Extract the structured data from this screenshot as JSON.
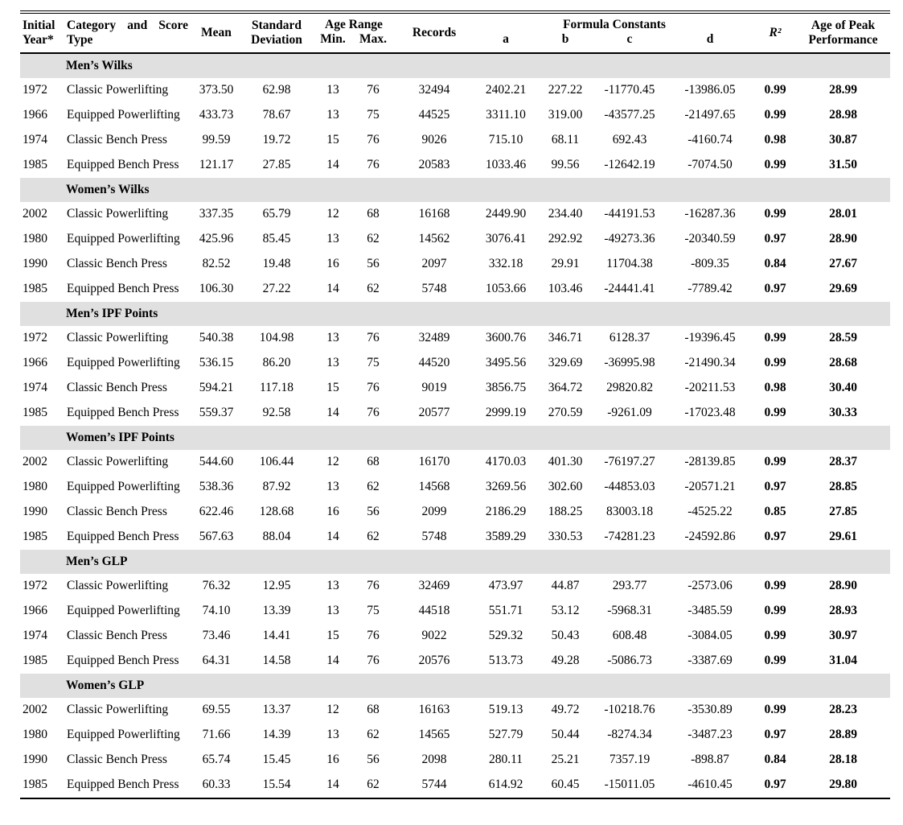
{
  "colors": {
    "section_band": "#e0e0e0",
    "text": "#000000"
  },
  "table": {
    "header": {
      "initial_year": "Initial Year*",
      "category": "Category and Score Type",
      "mean": "Mean",
      "std_dev": "Standard Deviation",
      "age_range": "Age Range",
      "min": "Min.",
      "max": "Max.",
      "records": "Records",
      "formula_constants": "Formula Constants",
      "a": "a",
      "b": "b",
      "c": "c",
      "d": "d",
      "r2": "R²",
      "peak": "Age of Peak Performance"
    },
    "sections": [
      {
        "title": "Men’s Wilks",
        "rows": [
          {
            "year": "1972",
            "category": "Classic Powerlifting",
            "mean": "373.50",
            "sd": "62.98",
            "min": "13",
            "max": "76",
            "records": "32494",
            "a": "2402.21",
            "b": "227.22",
            "c": "-11770.45",
            "d": "-13986.05",
            "r2": "0.99",
            "peak": "28.99"
          },
          {
            "year": "1966",
            "category": "Equipped Powerlifting",
            "mean": "433.73",
            "sd": "78.67",
            "min": "13",
            "max": "75",
            "records": "44525",
            "a": "3311.10",
            "b": "319.00",
            "c": "-43577.25",
            "d": "-21497.65",
            "r2": "0.99",
            "peak": "28.98"
          },
          {
            "year": "1974",
            "category": "Classic Bench Press",
            "mean": "99.59",
            "sd": "19.72",
            "min": "15",
            "max": "76",
            "records": "9026",
            "a": "715.10",
            "b": "68.11",
            "c": "692.43",
            "d": "-4160.74",
            "r2": "0.98",
            "peak": "30.87"
          },
          {
            "year": "1985",
            "category": "Equipped Bench Press",
            "mean": "121.17",
            "sd": "27.85",
            "min": "14",
            "max": "76",
            "records": "20583",
            "a": "1033.46",
            "b": "99.56",
            "c": "-12642.19",
            "d": "-7074.50",
            "r2": "0.99",
            "peak": "31.50"
          }
        ]
      },
      {
        "title": "Women’s Wilks",
        "rows": [
          {
            "year": "2002",
            "category": "Classic Powerlifting",
            "mean": "337.35",
            "sd": "65.79",
            "min": "12",
            "max": "68",
            "records": "16168",
            "a": "2449.90",
            "b": "234.40",
            "c": "-44191.53",
            "d": "-16287.36",
            "r2": "0.99",
            "peak": "28.01"
          },
          {
            "year": "1980",
            "category": "Equipped Powerlifting",
            "mean": "425.96",
            "sd": "85.45",
            "min": "13",
            "max": "62",
            "records": "14562",
            "a": "3076.41",
            "b": "292.92",
            "c": "-49273.36",
            "d": "-20340.59",
            "r2": "0.97",
            "peak": "28.90"
          },
          {
            "year": "1990",
            "category": "Classic Bench Press",
            "mean": "82.52",
            "sd": "19.48",
            "min": "16",
            "max": "56",
            "records": "2097",
            "a": "332.18",
            "b": "29.91",
            "c": "11704.38",
            "d": "-809.35",
            "r2": "0.84",
            "peak": "27.67"
          },
          {
            "year": "1985",
            "category": "Equipped Bench Press",
            "mean": "106.30",
            "sd": "27.22",
            "min": "14",
            "max": "62",
            "records": "5748",
            "a": "1053.66",
            "b": "103.46",
            "c": "-24441.41",
            "d": "-7789.42",
            "r2": "0.97",
            "peak": "29.69"
          }
        ]
      },
      {
        "title": "Men’s IPF Points",
        "rows": [
          {
            "year": "1972",
            "category": "Classic Powerlifting",
            "mean": "540.38",
            "sd": "104.98",
            "min": "13",
            "max": "76",
            "records": "32489",
            "a": "3600.76",
            "b": "346.71",
            "c": "6128.37",
            "d": "-19396.45",
            "r2": "0.99",
            "peak": "28.59"
          },
          {
            "year": "1966",
            "category": "Equipped Powerlifting",
            "mean": "536.15",
            "sd": "86.20",
            "min": "13",
            "max": "75",
            "records": "44520",
            "a": "3495.56",
            "b": "329.69",
            "c": "-36995.98",
            "d": "-21490.34",
            "r2": "0.99",
            "peak": "28.68"
          },
          {
            "year": "1974",
            "category": "Classic Bench Press",
            "mean": "594.21",
            "sd": "117.18",
            "min": "15",
            "max": "76",
            "records": "9019",
            "a": "3856.75",
            "b": "364.72",
            "c": "29820.82",
            "d": "-20211.53",
            "r2": "0.98",
            "peak": "30.40"
          },
          {
            "year": "1985",
            "category": "Equipped Bench Press",
            "mean": "559.37",
            "sd": "92.58",
            "min": "14",
            "max": "76",
            "records": "20577",
            "a": "2999.19",
            "b": "270.59",
            "c": "-9261.09",
            "d": "-17023.48",
            "r2": "0.99",
            "peak": "30.33"
          }
        ]
      },
      {
        "title": "Women’s IPF Points",
        "rows": [
          {
            "year": "2002",
            "category": "Classic Powerlifting",
            "mean": "544.60",
            "sd": "106.44",
            "min": "12",
            "max": "68",
            "records": "16170",
            "a": "4170.03",
            "b": "401.30",
            "c": "-76197.27",
            "d": "-28139.85",
            "r2": "0.99",
            "peak": "28.37"
          },
          {
            "year": "1980",
            "category": "Equipped Powerlifting",
            "mean": "538.36",
            "sd": "87.92",
            "min": "13",
            "max": "62",
            "records": "14568",
            "a": "3269.56",
            "b": "302.60",
            "c": "-44853.03",
            "d": "-20571.21",
            "r2": "0.97",
            "peak": "28.85"
          },
          {
            "year": "1990",
            "category": "Classic Bench Press",
            "mean": "622.46",
            "sd": "128.68",
            "min": "16",
            "max": "56",
            "records": "2099",
            "a": "2186.29",
            "b": "188.25",
            "c": "83003.18",
            "d": "-4525.22",
            "r2": "0.85",
            "peak": "27.85"
          },
          {
            "year": "1985",
            "category": "Equipped Bench Press",
            "mean": "567.63",
            "sd": "88.04",
            "min": "14",
            "max": "62",
            "records": "5748",
            "a": "3589.29",
            "b": "330.53",
            "c": "-74281.23",
            "d": "-24592.86",
            "r2": "0.97",
            "peak": "29.61"
          }
        ]
      },
      {
        "title": "Men’s GLP",
        "rows": [
          {
            "year": "1972",
            "category": "Classic Powerlifting",
            "mean": "76.32",
            "sd": "12.95",
            "min": "13",
            "max": "76",
            "records": "32469",
            "a": "473.97",
            "b": "44.87",
            "c": "293.77",
            "d": "-2573.06",
            "r2": "0.99",
            "peak": "28.90"
          },
          {
            "year": "1966",
            "category": "Equipped Powerlifting",
            "mean": "74.10",
            "sd": "13.39",
            "min": "13",
            "max": "75",
            "records": "44518",
            "a": "551.71",
            "b": "53.12",
            "c": "-5968.31",
            "d": "-3485.59",
            "r2": "0.99",
            "peak": "28.93"
          },
          {
            "year": "1974",
            "category": "Classic Bench Press",
            "mean": "73.46",
            "sd": "14.41",
            "min": "15",
            "max": "76",
            "records": "9022",
            "a": "529.32",
            "b": "50.43",
            "c": "608.48",
            "d": "-3084.05",
            "r2": "0.99",
            "peak": "30.97"
          },
          {
            "year": "1985",
            "category": "Equipped Bench Press",
            "mean": "64.31",
            "sd": "14.58",
            "min": "14",
            "max": "76",
            "records": "20576",
            "a": "513.73",
            "b": "49.28",
            "c": "-5086.73",
            "d": "-3387.69",
            "r2": "0.99",
            "peak": "31.04"
          }
        ]
      },
      {
        "title": "Women’s GLP",
        "rows": [
          {
            "year": "2002",
            "category": "Classic Powerlifting",
            "mean": "69.55",
            "sd": "13.37",
            "min": "12",
            "max": "68",
            "records": "16163",
            "a": "519.13",
            "b": "49.72",
            "c": "-10218.76",
            "d": "-3530.89",
            "r2": "0.99",
            "peak": "28.23"
          },
          {
            "year": "1980",
            "category": "Equipped Powerlifting",
            "mean": "71.66",
            "sd": "14.39",
            "min": "13",
            "max": "62",
            "records": "14565",
            "a": "527.79",
            "b": "50.44",
            "c": "-8274.34",
            "d": "-3487.23",
            "r2": "0.97",
            "peak": "28.89"
          },
          {
            "year": "1990",
            "category": "Classic Bench Press",
            "mean": "65.74",
            "sd": "15.45",
            "min": "16",
            "max": "56",
            "records": "2098",
            "a": "280.11",
            "b": "25.21",
            "c": "7357.19",
            "d": "-898.87",
            "r2": "0.84",
            "peak": "28.18"
          },
          {
            "year": "1985",
            "category": "Equipped Bench Press",
            "mean": "60.33",
            "sd": "15.54",
            "min": "14",
            "max": "62",
            "records": "5744",
            "a": "614.92",
            "b": "60.45",
            "c": "-15011.05",
            "d": "-4610.45",
            "r2": "0.97",
            "peak": "29.80"
          }
        ]
      }
    ]
  }
}
